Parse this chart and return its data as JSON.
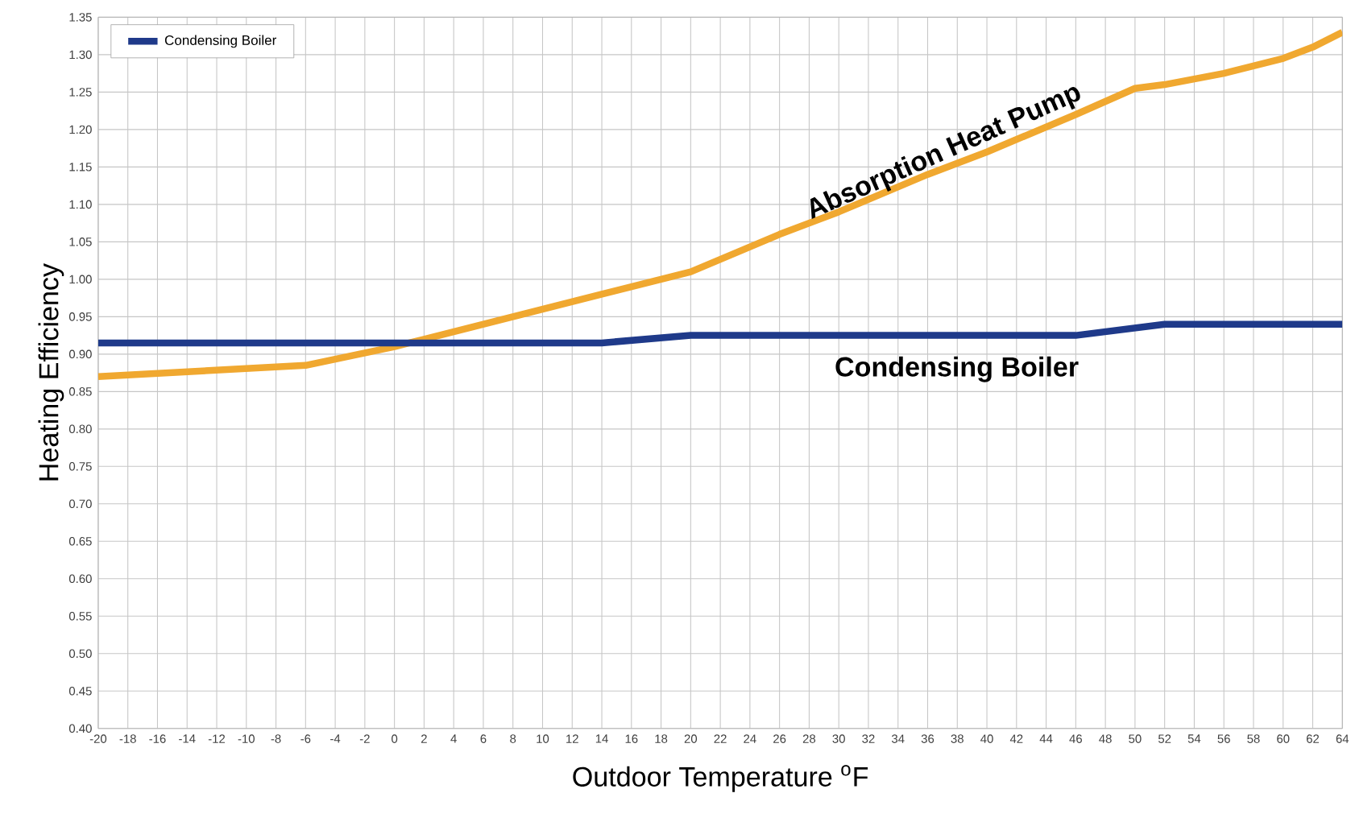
{
  "chart_data": {
    "type": "line",
    "xlabel": "Outdoor Temperature $^{o}$F",
    "ylabel": "Heating Efficiency",
    "xlim": [
      -20,
      64
    ],
    "ylim": [
      0.4,
      1.35
    ],
    "xticks": [
      -20,
      -18,
      -16,
      -14,
      -12,
      -10,
      -8,
      -6,
      -4,
      -2,
      0,
      2,
      4,
      6,
      8,
      10,
      12,
      14,
      16,
      18,
      20,
      22,
      24,
      26,
      28,
      30,
      32,
      34,
      36,
      38,
      40,
      42,
      44,
      46,
      48,
      50,
      52,
      54,
      56,
      58,
      60,
      62,
      64
    ],
    "yticks": [
      {
        "value": 0.4,
        "label": "0.40"
      },
      {
        "value": 0.45,
        "label": "0.45"
      },
      {
        "value": 0.5,
        "label": "0.50"
      },
      {
        "value": 0.55,
        "label": "0.55"
      },
      {
        "value": 0.6,
        "label": "0.60"
      },
      {
        "value": 0.65,
        "label": "0.65"
      },
      {
        "value": 0.7,
        "label": "0.70"
      },
      {
        "value": 0.75,
        "label": "0.75"
      },
      {
        "value": 0.8,
        "label": "0.80"
      },
      {
        "value": 0.85,
        "label": "0.85"
      },
      {
        "value": 0.9,
        "label": "0.90"
      },
      {
        "value": 0.95,
        "label": "0.95"
      },
      {
        "value": 1.0,
        "label": "1.00"
      },
      {
        "value": 1.05,
        "label": "1.05"
      },
      {
        "value": 1.1,
        "label": "1.10"
      },
      {
        "value": 1.15,
        "label": "1.15"
      },
      {
        "value": 1.2,
        "label": "1.20"
      },
      {
        "value": 1.25,
        "label": "1.25"
      },
      {
        "value": 1.3,
        "label": "1.30"
      },
      {
        "value": 1.35,
        "label": "1.35"
      }
    ],
    "grid": true,
    "legend": "top left",
    "marker": "none",
    "series": [
      {
        "color": "#f0a830",
        "x": [
          -20,
          -6,
          0,
          2,
          8,
          14,
          20,
          26,
          30,
          36,
          40,
          46,
          50,
          52,
          56,
          60,
          62,
          64
        ],
        "values": [
          0.87,
          0.885,
          0.91,
          0.92,
          0.95,
          0.98,
          1.01,
          1.06,
          1.09,
          1.14,
          1.17,
          1.22,
          1.255,
          1.26,
          1.275,
          1.295,
          1.31,
          1.33
        ]
      },
      {
        "name": "Condensing Boiler",
        "color": "#1f3a8a",
        "x": [
          -20,
          14,
          20,
          46,
          52,
          64
        ],
        "values": [
          0.915,
          0.915,
          0.925,
          0.925,
          0.94,
          0.94
        ]
      }
    ],
    "annotations": [
      "Absorption Heat Pump",
      "Condensing Boiler"
    ]
  }
}
